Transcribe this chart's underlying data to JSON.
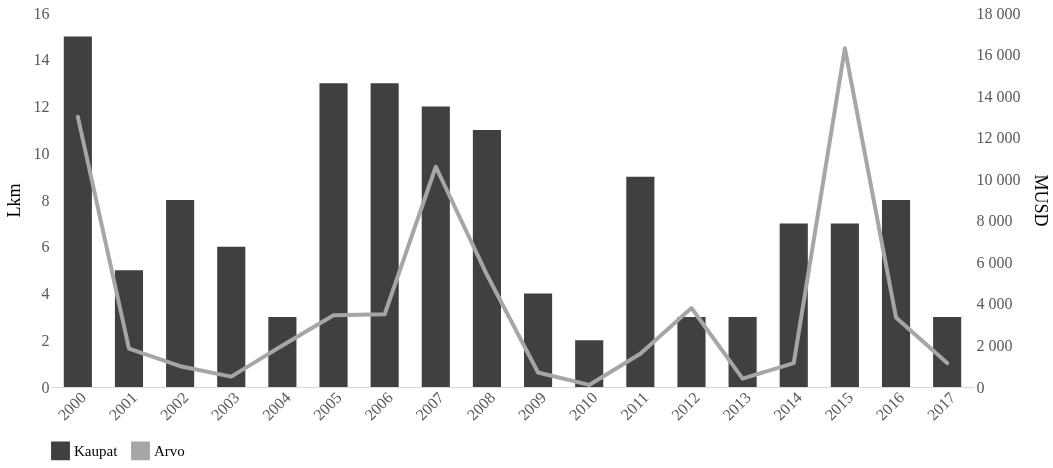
{
  "chart_data": {
    "type": "bar",
    "categories": [
      "2000",
      "2001",
      "2002",
      "2003",
      "2004",
      "2005",
      "2006",
      "2007",
      "2008",
      "2009",
      "2010",
      "2011",
      "2012",
      "2013",
      "2014",
      "2015",
      "2016",
      "2017"
    ],
    "series": [
      {
        "name": "Kaupat",
        "color": "#404040",
        "values": [
          15,
          5,
          8,
          6,
          3,
          13,
          13,
          12,
          11,
          4,
          2,
          9,
          3,
          3,
          7,
          7,
          8,
          3
        ]
      },
      {
        "name": "Arvo",
        "type": "line",
        "axis": "y2",
        "color": "#a6a6a6",
        "values": [
          13000,
          1850,
          1000,
          500,
          2000,
          3450,
          3500,
          10600,
          5400,
          700,
          100,
          1600,
          3800,
          400,
          1150,
          16300,
          3350,
          1150
        ]
      }
    ],
    "ylabel": "Lkm",
    "y2label": "MUSD",
    "ylim": [
      0,
      16
    ],
    "yticks": [
      0,
      2,
      4,
      6,
      8,
      10,
      12,
      14,
      16
    ],
    "y2lim": [
      0,
      18000
    ],
    "y2ticks": [
      0,
      {
        "value": 2000,
        "label": "2 000"
      },
      {
        "value": 4000,
        "label": "4 000"
      },
      {
        "value": 6000,
        "label": "6 000"
      },
      {
        "value": 8000,
        "label": "8 000"
      },
      {
        "value": 10000,
        "label": "10 000"
      },
      {
        "value": 12000,
        "label": "12 000"
      },
      {
        "value": 14000,
        "label": "14 000"
      },
      {
        "value": 16000,
        "label": "16 000"
      },
      {
        "value": 18000,
        "label": "18 000"
      }
    ],
    "grid": false,
    "legend": "bottom"
  }
}
